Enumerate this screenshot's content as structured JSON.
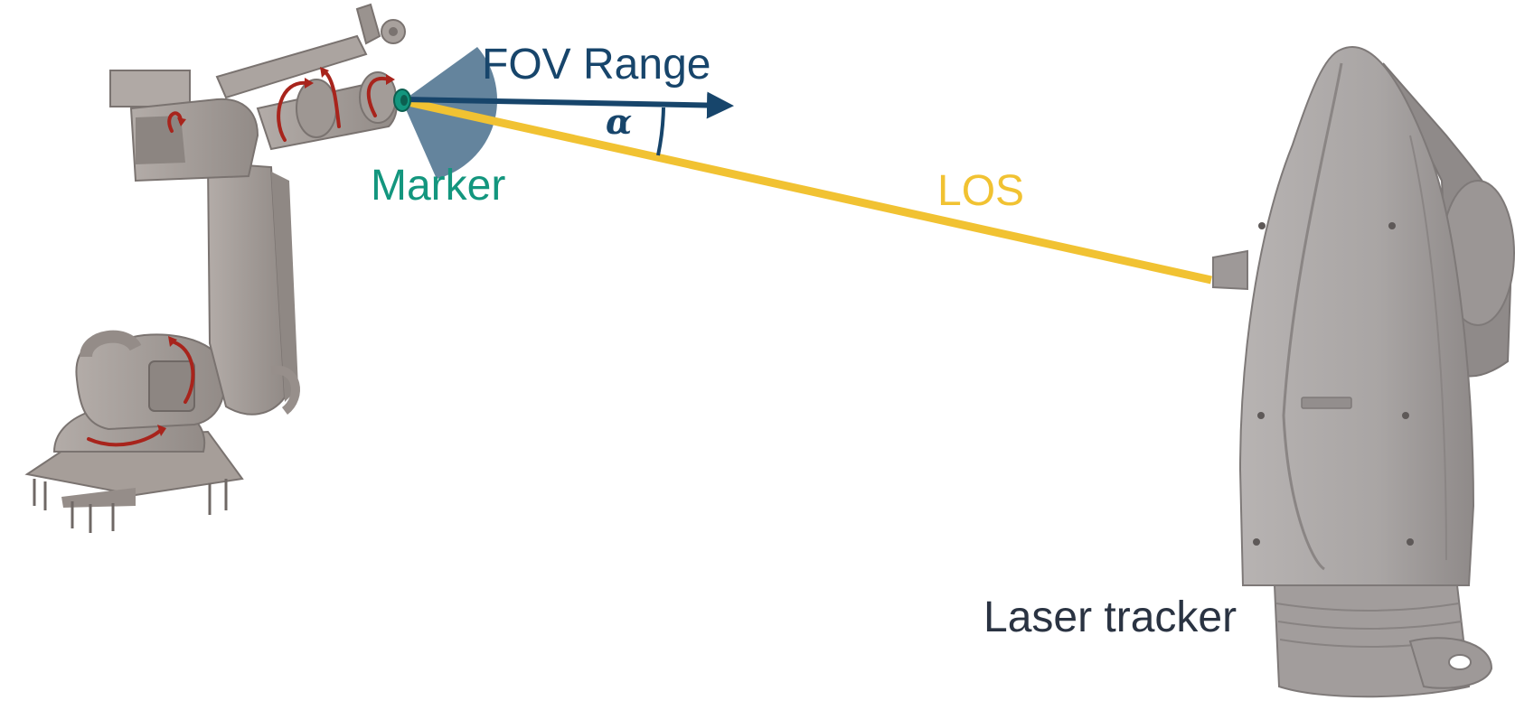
{
  "labels": {
    "fov_range": "FOV Range",
    "marker": "Marker",
    "los": "LOS",
    "laser_tracker": "Laser tracker",
    "angle_symbol": "α"
  },
  "colors": {
    "fov_navy": "#17456b",
    "fov_sector": "#4f7390",
    "marker_teal": "#13967e",
    "los_yellow": "#f1c232",
    "text_dark": "#2a3342",
    "rotation_red": "#a8241c",
    "machine_gray": "#a49c97",
    "machine_shadow": "#7e7773",
    "tracker_gray": "#aaa6a5",
    "tracker_shadow": "#8a8584"
  },
  "icons": {
    "robot": "industrial-robot-arm-icon",
    "tracker": "laser-tracker-icon",
    "rotation": "rotation-arrow-icon"
  }
}
